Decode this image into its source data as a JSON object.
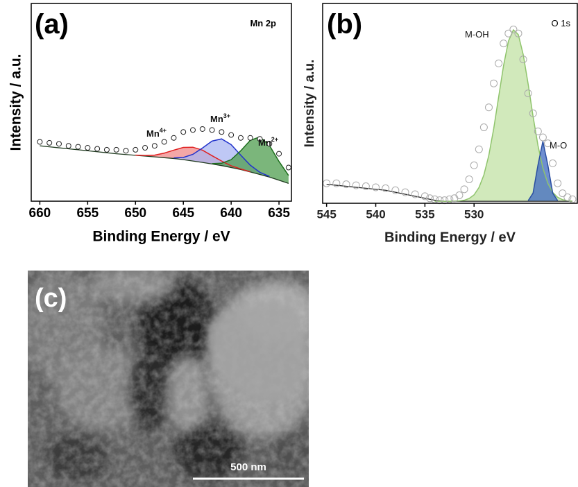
{
  "chart_data": [
    {
      "type": "line",
      "panel_label": "(a)",
      "title": "Mn 2p",
      "xlabel": "Binding Energy / eV",
      "ylabel": "Intensity / a.u.",
      "xlim": [
        660.9,
        633.7
      ],
      "xticks": [
        660,
        655,
        650,
        645,
        640,
        635
      ],
      "ylim": [
        0,
        100
      ],
      "x": [
        660,
        659,
        658,
        657,
        656,
        655,
        654,
        653,
        652,
        651,
        650,
        649,
        648,
        647,
        646,
        645,
        644,
        643,
        642,
        641,
        640,
        639,
        638,
        637,
        636,
        635,
        634
      ],
      "series": [
        {
          "color": "#1f3a1f",
          "values": [
            28,
            27.5,
            27,
            26.5,
            26,
            25.5,
            25,
            24.5,
            24,
            23.6,
            23.2,
            22.8,
            22.4,
            22,
            21.6,
            21,
            20.3,
            19.6,
            18.8,
            18,
            17,
            16,
            14.8,
            13.5,
            12.2,
            10.6,
            9
          ]
        },
        {
          "color": "#e02020",
          "fill": "#f08a8a",
          "label": "Mn",
          "label_sup": "4+",
          "values": [
            null,
            null,
            null,
            null,
            null,
            null,
            null,
            null,
            null,
            null,
            23.3,
            23.1,
            23.3,
            24.3,
            25.8,
            27.2,
            27.3,
            25.8,
            23,
            20.3,
            17.9,
            16.3,
            14.9,
            null,
            null,
            null,
            null
          ]
        },
        {
          "color": "#2233cc",
          "fill": "#a9b6f2",
          "label": "Mn",
          "label_sup": "3+",
          "values": [
            null,
            null,
            null,
            null,
            null,
            null,
            null,
            null,
            null,
            null,
            null,
            null,
            null,
            null,
            21.9,
            22.1,
            23.7,
            26.9,
            30.4,
            31.5,
            28.6,
            23.3,
            18.2,
            14.6,
            12.5,
            null,
            null
          ]
        },
        {
          "color": "#1d6e1d",
          "fill": "#4f9e4f",
          "label": "Mn",
          "label_sup": "2+",
          "values": [
            null,
            null,
            null,
            null,
            null,
            null,
            null,
            null,
            null,
            null,
            null,
            null,
            null,
            null,
            null,
            null,
            null,
            null,
            19,
            19.2,
            21,
            25.5,
            30.8,
            32.5,
            28.2,
            20.1,
            13
          ]
        },
        {
          "color": "#222222",
          "marker": "circle",
          "values": [
            30,
            29.5,
            29,
            28,
            27.5,
            27,
            26.5,
            26,
            26,
            25.5,
            26,
            27,
            28,
            30,
            32,
            35,
            36,
            36.5,
            36,
            35,
            33.5,
            32,
            32,
            31.5,
            29,
            24,
            17
          ]
        }
      ]
    },
    {
      "type": "line",
      "panel_label": "(b)",
      "title": "O 1s",
      "xlabel": "Binding Energy / eV",
      "ylabel": "Intensity / a.u.",
      "xlim": [
        545.4,
        519.5
      ],
      "xticks": [
        545,
        540,
        535,
        530
      ],
      "ylim": [
        0,
        100
      ],
      "x": [
        545,
        544,
        543,
        542,
        541,
        540,
        539,
        538,
        537,
        536,
        535,
        534.5,
        534,
        533.5,
        533,
        532.5,
        532,
        531.5,
        531,
        530.5,
        530,
        529.5,
        529,
        528.5,
        528,
        527.5,
        527,
        526.5,
        526,
        525.5,
        525,
        524.5,
        524,
        523.5,
        523,
        522.5,
        522,
        521.5,
        521,
        520.5,
        520
      ],
      "series": [
        {
          "color": "#222222",
          "values": [
            9.5,
            9,
            8.5,
            8,
            7.5,
            7,
            6.5,
            5.5,
            4.5,
            3.5,
            2.5,
            2,
            1.5,
            1.2,
            1,
            1,
            1,
            1,
            1,
            1,
            1,
            1,
            1,
            1,
            1,
            1,
            1,
            1,
            1,
            1,
            1,
            1,
            1,
            1,
            1,
            1,
            1,
            1,
            1,
            1,
            1
          ]
        },
        {
          "color": "#8fc46c",
          "fill": "#c2e2a4",
          "label": "M-OH",
          "values": [
            null,
            null,
            null,
            null,
            null,
            null,
            null,
            null,
            null,
            null,
            null,
            null,
            1.0,
            1.0,
            1.0,
            1.0,
            1.1,
            1.2,
            1.5,
            2.4,
            4.2,
            7.9,
            14.2,
            24,
            37.4,
            53.2,
            68.9,
            81.2,
            86.8,
            84.4,
            74.4,
            59.7,
            43.5,
            28.9,
            17.6,
            10,
            5.4,
            3,
            1.8,
            1.3,
            1.1
          ]
        },
        {
          "color": "#2a4fa0",
          "fill": "#3d68c0",
          "label": "M-O",
          "values": [
            null,
            null,
            null,
            null,
            null,
            null,
            null,
            null,
            null,
            null,
            null,
            null,
            null,
            null,
            null,
            null,
            null,
            null,
            null,
            null,
            null,
            null,
            null,
            null,
            null,
            null,
            null,
            null,
            null,
            null,
            null,
            1.3,
            5.1,
            19.2,
            31,
            19.2,
            5.1,
            1.3,
            null,
            null,
            null
          ]
        },
        {
          "color": "#aaaaaa",
          "marker": "circle",
          "values": [
            10,
            10,
            9.5,
            9,
            8.5,
            8,
            7.5,
            6.5,
            5.5,
            4.5,
            3.5,
            2.5,
            2,
            1.5,
            1.5,
            2,
            2.5,
            4,
            7,
            12,
            19,
            27,
            38,
            48,
            60,
            70,
            80,
            85,
            87,
            85,
            72,
            55,
            45,
            36,
            33,
            30,
            20,
            10,
            5,
            3,
            2
          ]
        }
      ]
    }
  ],
  "image": {
    "panel_label": "(c)",
    "scale_bar": "500 nm"
  }
}
